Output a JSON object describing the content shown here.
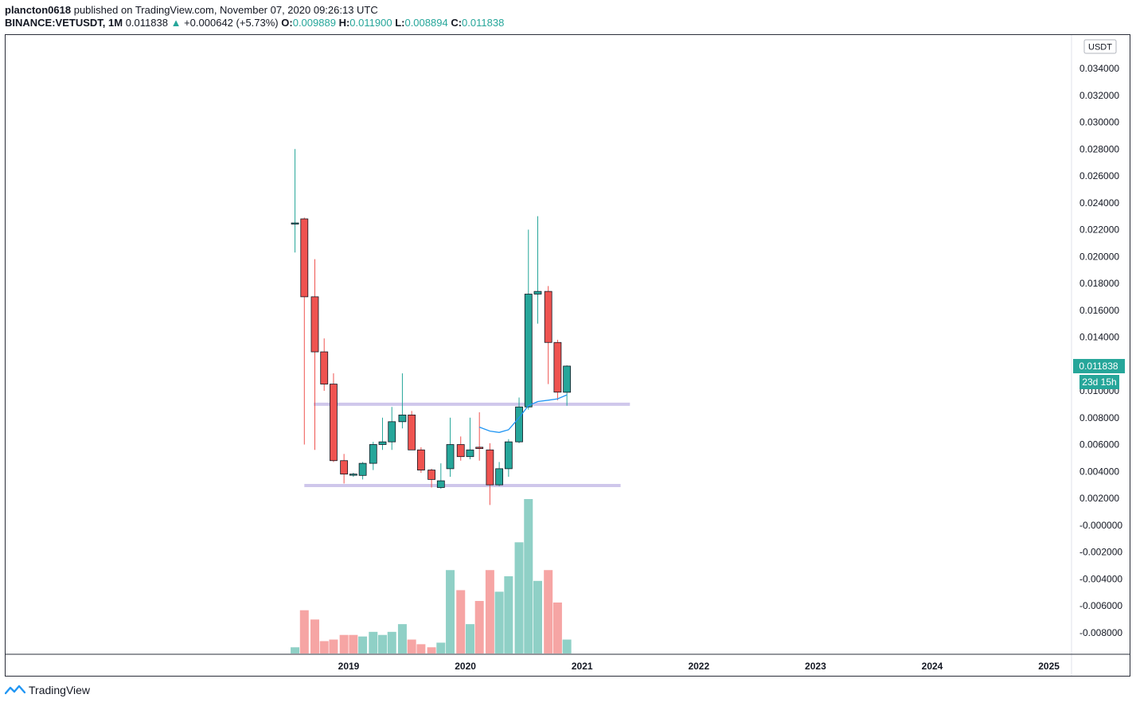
{
  "header": {
    "author": "plancton0618",
    "published_text": "published on TradingView.com, November 07, 2020 09:26:13 UTC",
    "symbol": "BINANCE:VETUSDT, 1M",
    "last": "0.011838",
    "change_arrow": "▲",
    "change": "+0.000642 (+5.73%)",
    "o_label": "O:",
    "o_value": "0.009889",
    "h_label": "H:",
    "h_value": "0.011900",
    "l_label": "L:",
    "l_value": "0.008894",
    "c_label": "C:",
    "c_value": "0.011838"
  },
  "footer": {
    "brand": "TradingView",
    "logo_icon": "tradingview-logo-icon"
  },
  "colors": {
    "up": "#26a69a",
    "down": "#ef5350",
    "volume_up": "#8fd0c6",
    "volume_down": "#f6a5a4",
    "ma": "#2196f3",
    "level": "#cfc7eb"
  },
  "chart_data": {
    "type": "candlestick",
    "symbol": "BINANCE:VETUSDT",
    "interval": "1M",
    "currency_label": "USDT",
    "price_axis_ticks": [
      "0.034000",
      "0.032000",
      "0.030000",
      "0.028000",
      "0.026000",
      "0.024000",
      "0.022000",
      "0.020000",
      "0.018000",
      "0.016000",
      "0.014000",
      "0.012000",
      "0.010000",
      "0.008000",
      "0.006000",
      "0.004000",
      "0.002000",
      "-0.000000",
      "-0.002000",
      "-0.004000",
      "-0.006000",
      "-0.008000"
    ],
    "price_axis_values": [
      0.034,
      0.032,
      0.03,
      0.028,
      0.026,
      0.024,
      0.022,
      0.02,
      0.018,
      0.016,
      0.014,
      0.012,
      0.01,
      0.008,
      0.006,
      0.004,
      0.002,
      0,
      -0.002,
      -0.004,
      -0.006,
      -0.008
    ],
    "time_axis_ticks": [
      "2019",
      "2020",
      "2021",
      "2022",
      "2023",
      "2024",
      "2025"
    ],
    "time_axis_positions": [
      2019,
      2020,
      2021,
      2022,
      2023,
      2024,
      2025
    ],
    "last_price_label": "0.011838",
    "countdown_label": "23d 15h",
    "candles": [
      {
        "t": 2018.54,
        "o": 0.0225,
        "h": 0.028,
        "l": 0.0203,
        "c": 0.0225
      },
      {
        "t": 2018.62,
        "o": 0.0228,
        "h": 0.0229,
        "l": 0.006,
        "c": 0.017
      },
      {
        "t": 2018.71,
        "o": 0.017,
        "h": 0.0198,
        "l": 0.0056,
        "c": 0.0129
      },
      {
        "t": 2018.79,
        "o": 0.0129,
        "h": 0.0139,
        "l": 0.01,
        "c": 0.0105
      },
      {
        "t": 2018.87,
        "o": 0.0105,
        "h": 0.0113,
        "l": 0.0047,
        "c": 0.0048
      },
      {
        "t": 2018.96,
        "o": 0.0048,
        "h": 0.0053,
        "l": 0.0031,
        "c": 0.0038
      },
      {
        "t": 2019.04,
        "o": 0.0038,
        "h": 0.0039,
        "l": 0.0036,
        "c": 0.0038
      },
      {
        "t": 2019.12,
        "o": 0.0037,
        "h": 0.0047,
        "l": 0.0034,
        "c": 0.0046
      },
      {
        "t": 2019.21,
        "o": 0.0046,
        "h": 0.0062,
        "l": 0.0041,
        "c": 0.006
      },
      {
        "t": 2019.29,
        "o": 0.006,
        "h": 0.008,
        "l": 0.0056,
        "c": 0.0062
      },
      {
        "t": 2019.37,
        "o": 0.0062,
        "h": 0.0088,
        "l": 0.0056,
        "c": 0.0077
      },
      {
        "t": 2019.46,
        "o": 0.0077,
        "h": 0.0113,
        "l": 0.0072,
        "c": 0.0082
      },
      {
        "t": 2019.54,
        "o": 0.0082,
        "h": 0.0085,
        "l": 0.0056,
        "c": 0.0056
      },
      {
        "t": 2019.62,
        "o": 0.0056,
        "h": 0.0058,
        "l": 0.0039,
        "c": 0.0041
      },
      {
        "t": 2019.71,
        "o": 0.0041,
        "h": 0.0042,
        "l": 0.0028,
        "c": 0.0034
      },
      {
        "t": 2019.79,
        "o": 0.0028,
        "h": 0.0046,
        "l": 0.0027,
        "c": 0.0033
      },
      {
        "t": 2019.87,
        "o": 0.0042,
        "h": 0.008,
        "l": 0.0036,
        "c": 0.006
      },
      {
        "t": 2019.96,
        "o": 0.006,
        "h": 0.0066,
        "l": 0.0048,
        "c": 0.0051
      },
      {
        "t": 2020.04,
        "o": 0.0051,
        "h": 0.008,
        "l": 0.0049,
        "c": 0.0056
      },
      {
        "t": 2020.12,
        "o": 0.0058,
        "h": 0.0084,
        "l": 0.0048,
        "c": 0.0057
      },
      {
        "t": 2020.21,
        "o": 0.0056,
        "h": 0.0061,
        "l": 0.0015,
        "c": 0.003
      },
      {
        "t": 2020.29,
        "o": 0.003,
        "h": 0.0047,
        "l": 0.0029,
        "c": 0.0042
      },
      {
        "t": 2020.37,
        "o": 0.0042,
        "h": 0.0064,
        "l": 0.0036,
        "c": 0.0062
      },
      {
        "t": 2020.46,
        "o": 0.0062,
        "h": 0.0095,
        "l": 0.0061,
        "c": 0.0088
      },
      {
        "t": 2020.54,
        "o": 0.0088,
        "h": 0.022,
        "l": 0.0086,
        "c": 0.0172
      },
      {
        "t": 2020.62,
        "o": 0.0172,
        "h": 0.023,
        "l": 0.015,
        "c": 0.0174
      },
      {
        "t": 2020.71,
        "o": 0.0174,
        "h": 0.0178,
        "l": 0.0105,
        "c": 0.0136
      },
      {
        "t": 2020.79,
        "o": 0.0136,
        "h": 0.0138,
        "l": 0.0093,
        "c": 0.0099
      },
      {
        "t": 2020.87,
        "o": 0.00989,
        "h": 0.0119,
        "l": 0.00889,
        "c": 0.01184
      }
    ],
    "volume": [
      {
        "t": 2018.54,
        "v": 0.04,
        "up": true
      },
      {
        "t": 2018.62,
        "v": 0.28,
        "up": false
      },
      {
        "t": 2018.71,
        "v": 0.22,
        "up": false
      },
      {
        "t": 2018.79,
        "v": 0.08,
        "up": false
      },
      {
        "t": 2018.87,
        "v": 0.09,
        "up": false
      },
      {
        "t": 2018.96,
        "v": 0.12,
        "up": false
      },
      {
        "t": 2019.04,
        "v": 0.12,
        "up": false
      },
      {
        "t": 2019.12,
        "v": 0.11,
        "up": true
      },
      {
        "t": 2019.21,
        "v": 0.14,
        "up": true
      },
      {
        "t": 2019.29,
        "v": 0.12,
        "up": true
      },
      {
        "t": 2019.37,
        "v": 0.14,
        "up": true
      },
      {
        "t": 2019.46,
        "v": 0.19,
        "up": true
      },
      {
        "t": 2019.54,
        "v": 0.09,
        "up": false
      },
      {
        "t": 2019.62,
        "v": 0.06,
        "up": false
      },
      {
        "t": 2019.71,
        "v": 0.04,
        "up": false
      },
      {
        "t": 2019.79,
        "v": 0.07,
        "up": true
      },
      {
        "t": 2019.87,
        "v": 0.54,
        "up": true
      },
      {
        "t": 2019.96,
        "v": 0.41,
        "up": false
      },
      {
        "t": 2020.04,
        "v": 0.19,
        "up": true
      },
      {
        "t": 2020.12,
        "v": 0.34,
        "up": false
      },
      {
        "t": 2020.21,
        "v": 0.54,
        "up": false
      },
      {
        "t": 2020.29,
        "v": 0.4,
        "up": true
      },
      {
        "t": 2020.37,
        "v": 0.5,
        "up": true
      },
      {
        "t": 2020.46,
        "v": 0.72,
        "up": true
      },
      {
        "t": 2020.54,
        "v": 1.0,
        "up": true
      },
      {
        "t": 2020.62,
        "v": 0.47,
        "up": true
      },
      {
        "t": 2020.71,
        "v": 0.54,
        "up": false
      },
      {
        "t": 2020.79,
        "v": 0.33,
        "up": false
      },
      {
        "t": 2020.87,
        "v": 0.09,
        "up": true
      }
    ],
    "moving_average": [
      {
        "t": 2020.12,
        "v": 0.0073
      },
      {
        "t": 2020.21,
        "v": 0.007
      },
      {
        "t": 2020.29,
        "v": 0.0069
      },
      {
        "t": 2020.37,
        "v": 0.0071
      },
      {
        "t": 2020.46,
        "v": 0.008
      },
      {
        "t": 2020.54,
        "v": 0.0089
      },
      {
        "t": 2020.62,
        "v": 0.0092
      },
      {
        "t": 2020.71,
        "v": 0.0093
      },
      {
        "t": 2020.79,
        "v": 0.0094
      },
      {
        "t": 2020.87,
        "v": 0.0097
      }
    ],
    "horizontal_levels": [
      {
        "price": 0.009,
        "t_start": 2018.7,
        "t_end": 2021.41
      },
      {
        "price": 0.00295,
        "t_start": 2018.62,
        "t_end": 2021.33
      }
    ]
  }
}
